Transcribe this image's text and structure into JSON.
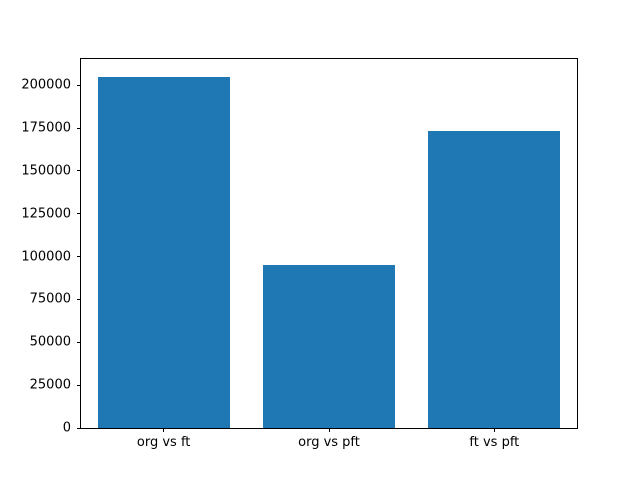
{
  "chart_data": {
    "type": "bar",
    "categories": [
      "org vs ft",
      "org vs pft",
      "ft vs pft"
    ],
    "values": [
      205000,
      95000,
      173000
    ],
    "title": "",
    "xlabel": "",
    "ylabel": "",
    "ylim": [
      0,
      215250
    ],
    "yticks": [
      0,
      25000,
      50000,
      75000,
      100000,
      125000,
      150000,
      175000,
      200000
    ],
    "bar_color": "#1f77b4",
    "bar_width_fraction": 0.8,
    "grid": false,
    "legend_position": "none"
  }
}
